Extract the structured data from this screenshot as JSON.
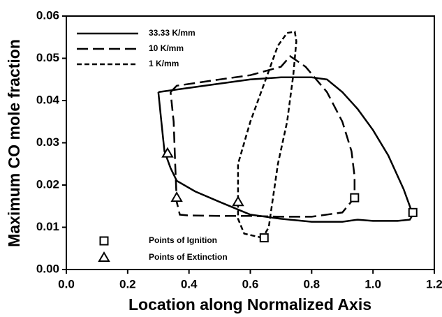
{
  "chart_data": {
    "type": "line",
    "x_label": "Location along Normalized Axis",
    "y_label": "Maximum CO mole fraction",
    "xlim": [
      0,
      1.2
    ],
    "ylim": [
      0,
      0.06
    ],
    "xticks": [
      {
        "value": 0,
        "label": "0.0"
      },
      0.2,
      0.4,
      0.6,
      0.8,
      {
        "value": 1,
        "label": "1.0"
      },
      1.2
    ],
    "yticks": [
      {
        "value": 0,
        "label": "0.00"
      },
      0.01,
      0.02,
      0.03,
      0.04,
      0.05,
      0.06
    ],
    "grid": false,
    "series": [
      {
        "name": "33.33 K/mm",
        "color": "#000000",
        "dash": "solid",
        "x": [
          0.3,
          0.35,
          0.5,
          0.6,
          0.7,
          0.8,
          0.85,
          0.9,
          0.95,
          1.0,
          1.05,
          1.1,
          1.13,
          1.12,
          1.08,
          1.0,
          0.95,
          0.9,
          0.8,
          0.7,
          0.6,
          0.5,
          0.42,
          0.36,
          0.34,
          0.32,
          0.31,
          0.3
        ],
        "values": [
          0.042,
          0.0425,
          0.044,
          0.045,
          0.0455,
          0.0455,
          0.045,
          0.042,
          0.038,
          0.033,
          0.027,
          0.019,
          0.013,
          0.0118,
          0.0115,
          0.0115,
          0.0118,
          0.0113,
          0.0113,
          0.012,
          0.013,
          0.016,
          0.0185,
          0.021,
          0.024,
          0.028,
          0.035,
          0.042
        ]
      },
      {
        "name": "10 K/mm",
        "color": "#000000",
        "dash": "long",
        "x": [
          0.34,
          0.36,
          0.5,
          0.6,
          0.7,
          0.73,
          0.78,
          0.85,
          0.9,
          0.93,
          0.94,
          0.94,
          0.9,
          0.8,
          0.7,
          0.6,
          0.5,
          0.4,
          0.37,
          0.36,
          0.355,
          0.35,
          0.34
        ],
        "values": [
          0.042,
          0.0435,
          0.045,
          0.046,
          0.048,
          0.0505,
          0.048,
          0.042,
          0.035,
          0.028,
          0.022,
          0.017,
          0.0135,
          0.0125,
          0.0125,
          0.0127,
          0.0127,
          0.0128,
          0.013,
          0.016,
          0.025,
          0.035,
          0.042
        ]
      },
      {
        "name": "1 K/mm",
        "color": "#000000",
        "dash": "short",
        "x": [
          0.64,
          0.58,
          0.56,
          0.56,
          0.6,
          0.65,
          0.69,
          0.72,
          0.745,
          0.75,
          0.74,
          0.72,
          0.69,
          0.67,
          0.66,
          0.64
        ],
        "values": [
          0.0075,
          0.0085,
          0.012,
          0.025,
          0.035,
          0.045,
          0.053,
          0.056,
          0.0563,
          0.054,
          0.046,
          0.035,
          0.025,
          0.015,
          0.01,
          0.0075
        ]
      },
      {
        "name": "Points of Ignition",
        "color": "#000000",
        "marker": "square",
        "x": [
          0.645,
          0.94,
          1.13
        ],
        "values": [
          0.0075,
          0.017,
          0.0135
        ]
      },
      {
        "name": "Points of Extinction",
        "color": "#000000",
        "marker": "triangle",
        "x": [
          0.33,
          0.36,
          0.56
        ],
        "values": [
          0.0275,
          0.017,
          0.016
        ]
      }
    ]
  }
}
